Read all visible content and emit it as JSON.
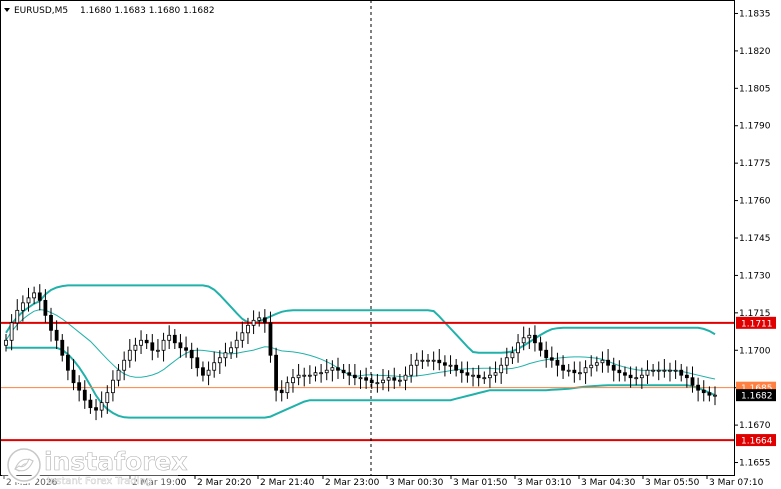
{
  "header": {
    "symbol": "EURUSD,M5",
    "ohlc": "1.1680 1.1683 1.1680 1.1682"
  },
  "brand": {
    "name": "instaforex",
    "tagline": "Instant Forex Trading"
  },
  "colors": {
    "candle": "#000000",
    "band": "#20b2aa",
    "middle_line": "#20b2aa",
    "support_resistance": "#e00000",
    "price_line": "#ff8040",
    "price_box": "#000000",
    "level_box": "#e00000"
  },
  "chart_data": {
    "type": "candlestick",
    "symbol": "EURUSD",
    "timeframe": "M5",
    "ylim": [
      1.165,
      1.184
    ],
    "y_ticks": [
      "1.1835",
      "1.1820",
      "1.1805",
      "1.1790",
      "1.1775",
      "1.1760",
      "1.1745",
      "1.1730",
      "1.1715",
      "1.1700",
      "1.1685",
      "1.1670",
      "1.1655"
    ],
    "x_ticks": [
      "2 Mar 2026",
      "2 Mar 19:00",
      "2 Mar 20:20",
      "2 Mar 21:40",
      "2 Mar 23:00",
      "3 Mar 00:30",
      "3 Mar 01:50",
      "3 Mar 03:10",
      "3 Mar 04:30",
      "3 Mar 05:50",
      "3 Mar 07:10"
    ],
    "levels": [
      {
        "label": "1.1711",
        "value": 1.1711,
        "kind": "resistance"
      },
      {
        "label": "1.1664",
        "value": 1.1664,
        "kind": "support"
      }
    ],
    "current_price": {
      "label": "1.1682",
      "value": 1.1682
    },
    "price_line": {
      "label": "1.1685",
      "value": 1.1685
    },
    "vertical_marker": "2 Mar 23:00",
    "close": [
      1.1704,
      1.1711,
      1.1716,
      1.1719,
      1.1721,
      1.1723,
      1.172,
      1.1714,
      1.1708,
      1.1704,
      1.1698,
      1.1692,
      1.1687,
      1.1684,
      1.168,
      1.1677,
      1.1676,
      1.1679,
      1.1683,
      1.1688,
      1.1692,
      1.1696,
      1.17,
      1.1702,
      1.1704,
      1.1703,
      1.17,
      1.17,
      1.1704,
      1.1706,
      1.1703,
      1.1701,
      1.17,
      1.1697,
      1.1693,
      1.169,
      1.1692,
      1.1695,
      1.1697,
      1.1699,
      1.1701,
      1.1704,
      1.1707,
      1.171,
      1.1712,
      1.1713,
      1.1711,
      1.1698,
      1.1684,
      1.1683,
      1.1687,
      1.1689,
      1.169,
      1.169,
      1.169,
      1.1691,
      1.1691,
      1.1692,
      1.1693,
      1.1692,
      1.1691,
      1.169,
      1.1689,
      1.1689,
      1.1688,
      1.1687,
      1.1687,
      1.1688,
      1.1689,
      1.1688,
      1.1688,
      1.169,
      1.1694,
      1.1696,
      1.1696,
      1.1696,
      1.1696,
      1.1695,
      1.1694,
      1.1694,
      1.1692,
      1.1691,
      1.169,
      1.169,
      1.1689,
      1.1689,
      1.169,
      1.1691,
      1.1694,
      1.1697,
      1.1699,
      1.1703,
      1.1705,
      1.1706,
      1.1703,
      1.17,
      1.1697,
      1.1696,
      1.1694,
      1.1692,
      1.1692,
      1.1691,
      1.1691,
      1.1693,
      1.1694,
      1.1695,
      1.1696,
      1.1694,
      1.1692,
      1.1691,
      1.169,
      1.1689,
      1.1689,
      1.169,
      1.1692,
      1.1692,
      1.1692,
      1.1692,
      1.1692,
      1.1692,
      1.169,
      1.1689,
      1.1686,
      1.1684,
      1.1683,
      1.1682,
      1.1682
    ]
  }
}
